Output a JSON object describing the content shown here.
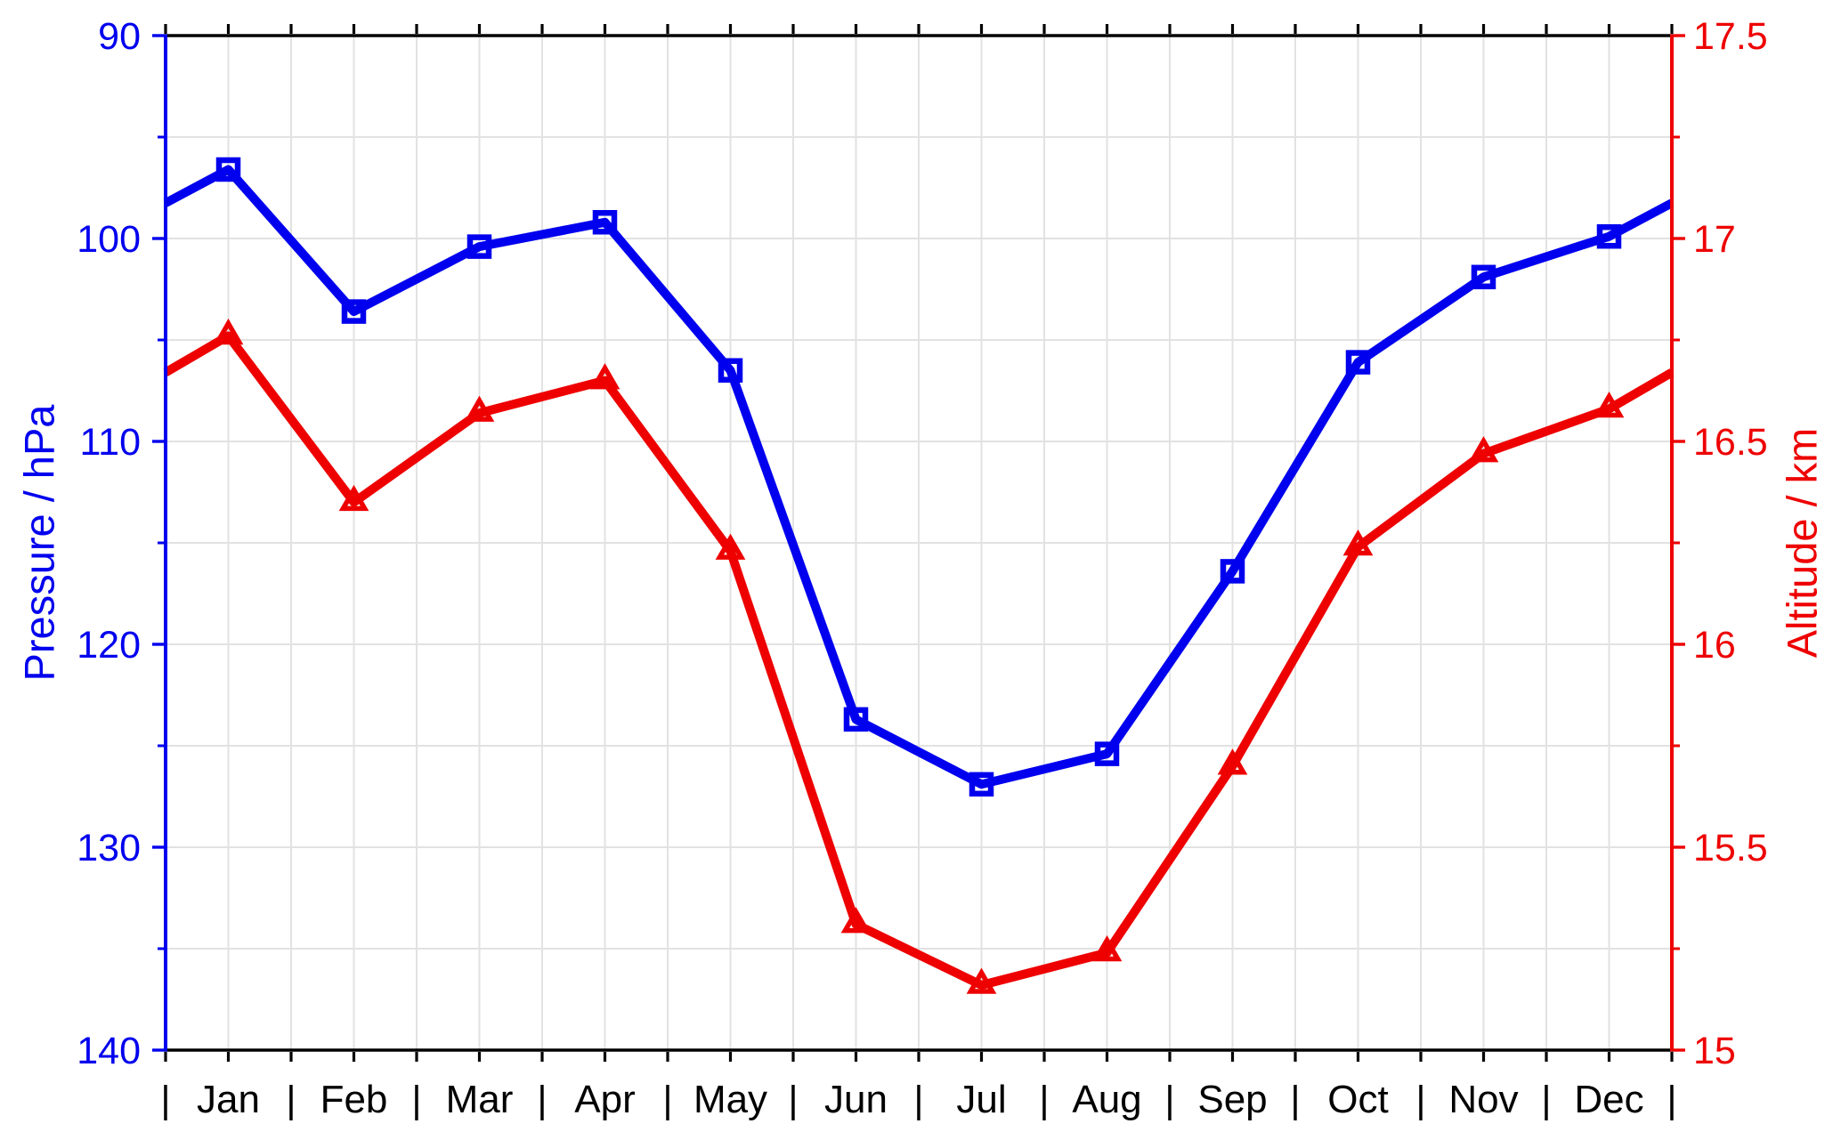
{
  "chart_data": {
    "type": "line",
    "categories": [
      "Jan",
      "Feb",
      "Mar",
      "Apr",
      "May",
      "Jun",
      "Jul",
      "Aug",
      "Sep",
      "Oct",
      "Nov",
      "Dec"
    ],
    "x_separator": "|",
    "series": [
      {
        "name": "Pressure",
        "axis": "left",
        "color": "#0000EE",
        "marker": "square",
        "values": [
          96.6,
          103.6,
          100.4,
          99.2,
          106.5,
          123.7,
          126.9,
          125.4,
          116.4,
          106.1,
          101.9,
          99.9
        ]
      },
      {
        "name": "Altitude",
        "axis": "right",
        "color": "#EE0000",
        "marker": "triangle-up",
        "values": [
          16.76,
          16.35,
          16.57,
          16.65,
          16.23,
          15.31,
          15.16,
          15.24,
          15.7,
          16.24,
          16.47,
          16.58
        ]
      }
    ],
    "left_axis": {
      "label": "Pressure / hPa",
      "color": "#0000EE",
      "min": 90,
      "max": 140,
      "inverted": true,
      "tick_values": [
        90,
        100,
        110,
        120,
        130,
        140
      ],
      "tick_labels": [
        "90",
        "100",
        "110",
        "120",
        "130",
        "140"
      ],
      "minor_tick_values": [
        95,
        105,
        115,
        125,
        135
      ]
    },
    "right_axis": {
      "label": "Altitude / km",
      "color": "#EE0000",
      "min": 15,
      "max": 17.5,
      "tick_values": [
        17.5,
        17,
        16.5,
        16,
        15.5,
        15
      ],
      "tick_labels": [
        "17.5",
        "17",
        "16.5",
        "16",
        "15.5",
        "15"
      ],
      "minor_tick_values": [
        17.25,
        16.75,
        16.25,
        15.75,
        15.25
      ]
    },
    "grid": {
      "show": true,
      "color": "#E2E2E2",
      "x_divisions_per_month": 2,
      "y_step_hpa": 5
    },
    "frame_color": "#000000",
    "background": "#FFFFFF",
    "wrap_lines_to_plot_edges": true,
    "legend": false
  }
}
